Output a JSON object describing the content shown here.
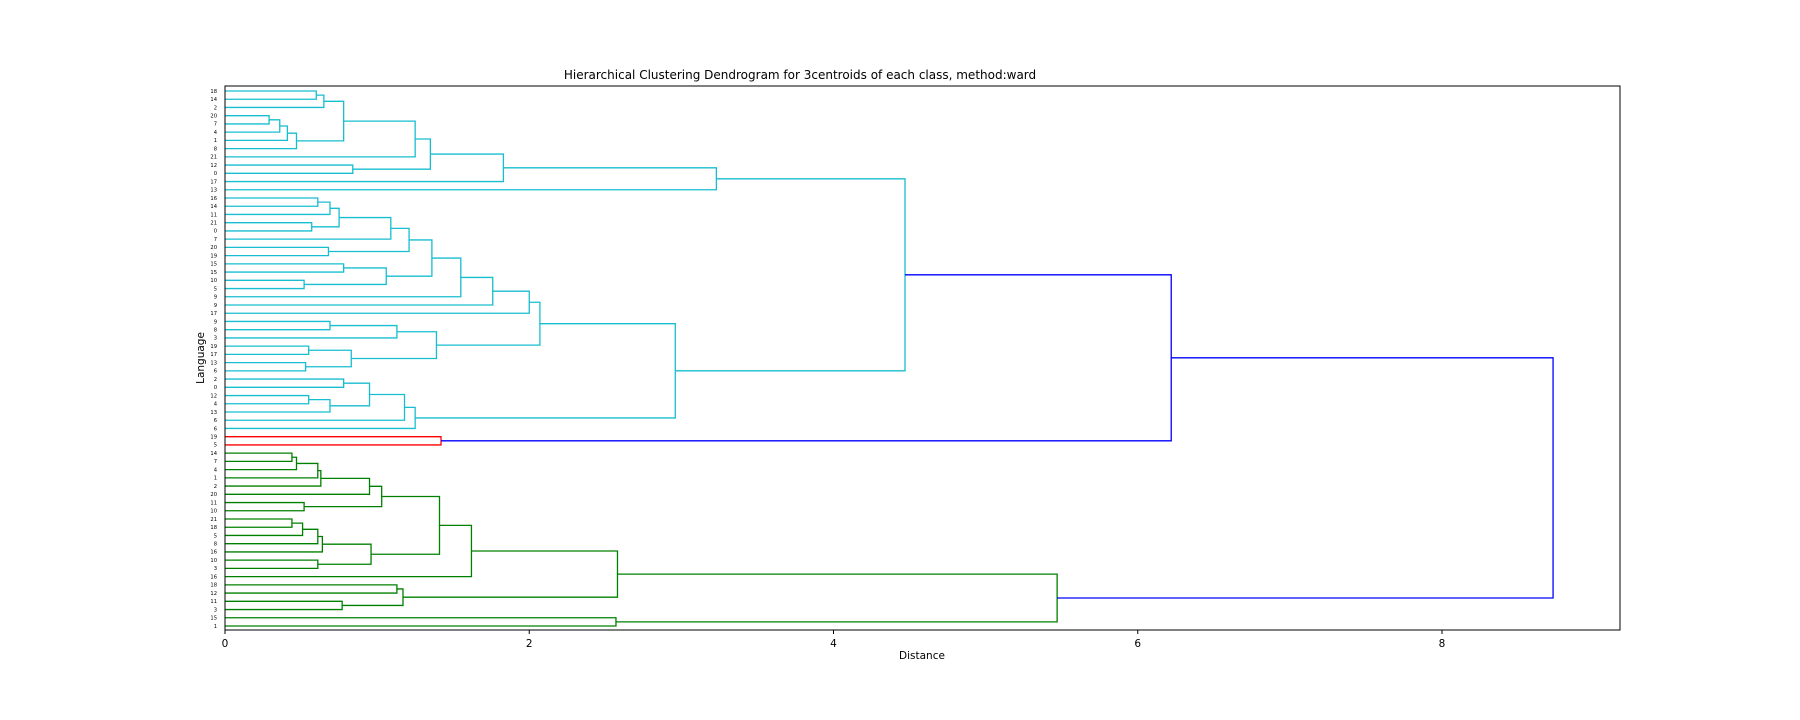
{
  "chart_data": {
    "type": "dendrogram",
    "orientation": "horizontal",
    "title": "Hierarchical Clustering Dendrogram for 3centroids of each class, method:ward",
    "xlabel": "Distance",
    "ylabel": "Language",
    "xlim": [
      0,
      9.17
    ],
    "xticks": [
      "0",
      "2",
      "4",
      "6",
      "8"
    ],
    "xtick_values": [
      0,
      2,
      4,
      6,
      8
    ],
    "colors": {
      "cyan": "#17becf",
      "red": "#ff0000",
      "green": "#008000",
      "blue": "#0000ff"
    },
    "leaves": [
      "18",
      "14",
      "2",
      "20",
      "7",
      "4",
      "1",
      "8",
      "21",
      "12",
      "0",
      "17",
      "13",
      "16",
      "14",
      "11",
      "21",
      "0",
      "7",
      "20",
      "19",
      "15",
      "15",
      "10",
      "5",
      "9",
      "9",
      "17",
      "9",
      "8",
      "3",
      "19",
      "17",
      "13",
      "6",
      "2",
      "0",
      "12",
      "4",
      "13",
      "6",
      "6",
      "19",
      "5",
      "14",
      "7",
      "4",
      "1",
      "2",
      "20",
      "11",
      "10",
      "21",
      "18",
      "5",
      "8",
      "16",
      "10",
      "3",
      "16",
      "18",
      "12",
      "11",
      "3",
      "15",
      "1"
    ],
    "merges": [
      {
        "a": "L3",
        "b": "L4",
        "d": 0.29,
        "c": "cyan"
      },
      {
        "a": "M0",
        "b": "L5",
        "d": 0.36,
        "c": "cyan"
      },
      {
        "a": "M1",
        "b": "L6",
        "d": 0.41,
        "c": "cyan"
      },
      {
        "a": "M2",
        "b": "L7",
        "d": 0.47,
        "c": "cyan"
      },
      {
        "a": "L0",
        "b": "L1",
        "d": 0.6,
        "c": "cyan"
      },
      {
        "a": "M4",
        "b": "L2",
        "d": 0.65,
        "c": "cyan"
      },
      {
        "a": "M5",
        "b": "M3",
        "d": 0.78,
        "c": "cyan"
      },
      {
        "a": "M6",
        "b": "L8",
        "d": 1.25,
        "c": "cyan"
      },
      {
        "a": "L9",
        "b": "L10",
        "d": 0.84,
        "c": "cyan"
      },
      {
        "a": "M7",
        "b": "M8",
        "d": 1.35,
        "c": "cyan"
      },
      {
        "a": "M9",
        "b": "L11",
        "d": 1.83,
        "c": "cyan"
      },
      {
        "a": "M10",
        "b": "L12",
        "d": 3.23,
        "c": "cyan"
      },
      {
        "a": "L13",
        "b": "L14",
        "d": 0.61,
        "c": "cyan"
      },
      {
        "a": "M12",
        "b": "L15",
        "d": 0.69,
        "c": "cyan"
      },
      {
        "a": "L16",
        "b": "L17",
        "d": 0.57,
        "c": "cyan"
      },
      {
        "a": "M13",
        "b": "M14",
        "d": 0.75,
        "c": "cyan"
      },
      {
        "a": "M15",
        "b": "L18",
        "d": 1.09,
        "c": "cyan"
      },
      {
        "a": "L19",
        "b": "L20",
        "d": 0.68,
        "c": "cyan"
      },
      {
        "a": "M16",
        "b": "M17",
        "d": 1.21,
        "c": "cyan"
      },
      {
        "a": "L21",
        "b": "L22",
        "d": 0.78,
        "c": "cyan"
      },
      {
        "a": "L23",
        "b": "L24",
        "d": 0.52,
        "c": "cyan"
      },
      {
        "a": "M19",
        "b": "M20",
        "d": 1.06,
        "c": "cyan"
      },
      {
        "a": "M18",
        "b": "M21",
        "d": 1.36,
        "c": "cyan"
      },
      {
        "a": "M22",
        "b": "L25",
        "d": 1.55,
        "c": "cyan"
      },
      {
        "a": "M23",
        "b": "L26",
        "d": 1.76,
        "c": "cyan"
      },
      {
        "a": "M24",
        "b": "L27",
        "d": 2.0,
        "c": "cyan"
      },
      {
        "a": "L28",
        "b": "L29",
        "d": 0.69,
        "c": "cyan"
      },
      {
        "a": "M26",
        "b": "L30",
        "d": 1.13,
        "c": "cyan"
      },
      {
        "a": "L31",
        "b": "L32",
        "d": 0.55,
        "c": "cyan"
      },
      {
        "a": "L33",
        "b": "L34",
        "d": 0.53,
        "c": "cyan"
      },
      {
        "a": "M28",
        "b": "M29",
        "d": 0.83,
        "c": "cyan"
      },
      {
        "a": "M27",
        "b": "M30",
        "d": 1.39,
        "c": "cyan"
      },
      {
        "a": "M25",
        "b": "M31",
        "d": 2.07,
        "c": "cyan"
      },
      {
        "a": "L37",
        "b": "L38",
        "d": 0.55,
        "c": "cyan"
      },
      {
        "a": "M33",
        "b": "L39",
        "d": 0.69,
        "c": "cyan"
      },
      {
        "a": "L35",
        "b": "L36",
        "d": 0.78,
        "c": "cyan"
      },
      {
        "a": "M35",
        "b": "M34",
        "d": 0.95,
        "c": "cyan"
      },
      {
        "a": "M36",
        "b": "L40",
        "d": 1.18,
        "c": "cyan"
      },
      {
        "a": "M37",
        "b": "L41",
        "d": 1.25,
        "c": "cyan"
      },
      {
        "a": "M32",
        "b": "M38",
        "d": 2.96,
        "c": "cyan"
      },
      {
        "a": "M11",
        "b": "M39",
        "d": 4.47,
        "c": "cyan"
      },
      {
        "a": "L42",
        "b": "L43",
        "d": 1.42,
        "c": "red"
      },
      {
        "a": "M40",
        "b": "M41",
        "d": 6.22,
        "c": "blue"
      },
      {
        "a": "L44",
        "b": "L45",
        "d": 0.44,
        "c": "green"
      },
      {
        "a": "M43",
        "b": "L46",
        "d": 0.47,
        "c": "green"
      },
      {
        "a": "M44",
        "b": "L47",
        "d": 0.61,
        "c": "green"
      },
      {
        "a": "M45",
        "b": "L48",
        "d": 0.63,
        "c": "green"
      },
      {
        "a": "L50",
        "b": "L51",
        "d": 0.52,
        "c": "green"
      },
      {
        "a": "M46",
        "b": "L49",
        "d": 0.95,
        "c": "green"
      },
      {
        "a": "M48",
        "b": "M47",
        "d": 1.03,
        "c": "green"
      },
      {
        "a": "L52",
        "b": "L53",
        "d": 0.44,
        "c": "green"
      },
      {
        "a": "M50",
        "b": "L54",
        "d": 0.51,
        "c": "green"
      },
      {
        "a": "M51",
        "b": "L55",
        "d": 0.61,
        "c": "green"
      },
      {
        "a": "M52",
        "b": "L56",
        "d": 0.64,
        "c": "green"
      },
      {
        "a": "L57",
        "b": "L58",
        "d": 0.61,
        "c": "green"
      },
      {
        "a": "M53",
        "b": "M54",
        "d": 0.96,
        "c": "green"
      },
      {
        "a": "M49",
        "b": "M55",
        "d": 1.41,
        "c": "green"
      },
      {
        "a": "M56",
        "b": "L59",
        "d": 1.62,
        "c": "green"
      },
      {
        "a": "L60",
        "b": "L61",
        "d": 1.13,
        "c": "green"
      },
      {
        "a": "L62",
        "b": "L63",
        "d": 0.77,
        "c": "green"
      },
      {
        "a": "M58",
        "b": "M59",
        "d": 1.17,
        "c": "green"
      },
      {
        "a": "M57",
        "b": "M60",
        "d": 2.58,
        "c": "green"
      },
      {
        "a": "L64",
        "b": "L65",
        "d": 2.57,
        "c": "green"
      },
      {
        "a": "M61",
        "b": "M62",
        "d": 5.47,
        "c": "green"
      },
      {
        "a": "M42",
        "b": "M63",
        "d": 8.73,
        "c": "blue"
      }
    ]
  }
}
